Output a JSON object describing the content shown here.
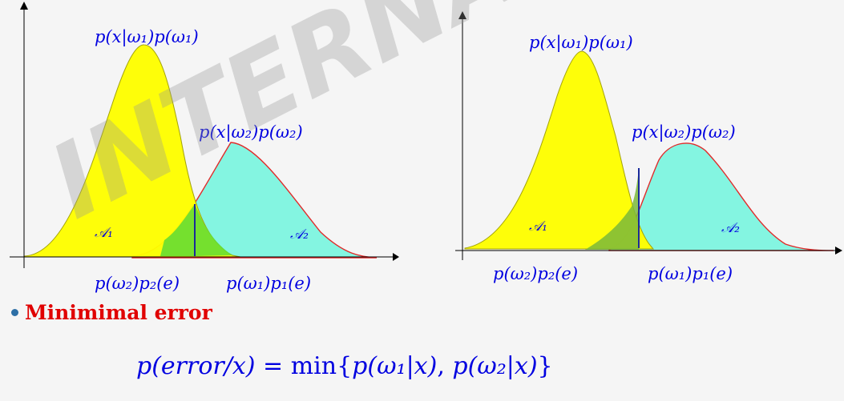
{
  "left_plot": {
    "label_class1": "p(x|ω₁)p(ω₁)",
    "label_class2": "p(x|ω₂)p(ω₂)",
    "region1": "𝒜₁",
    "region2": "𝒜₂",
    "error_label_left": "p(ω₂)p₂(e)",
    "error_label_right": "p(ω₁)p₁(e)"
  },
  "right_plot": {
    "label_class1": "p(x|ω₁)p(ω₁)",
    "label_class2": "p(x|ω₂)p(ω₂)",
    "region1": "𝒜₁",
    "region2": "𝒜₂",
    "error_label_left": "p(ω₂)p₂(e)",
    "error_label_right": "p(ω₁)p₁(e)"
  },
  "bullet_text": "Minimimal error",
  "formula": {
    "lhs": "p(error/x)",
    "eq": " = ",
    "min": "min",
    "open": "{",
    "term1": "p(ω₁|x)",
    "sep": ", ",
    "term2": "p(ω₂|x)",
    "close": "}"
  },
  "watermark": "INTERNAL USE",
  "colors": {
    "class1_fill": "#ffff00",
    "class2_fill": "#7ff5e0",
    "overlap_fill": "#66dd33",
    "class2_stroke": "#e02020",
    "threshold_line": "#1a2a9a",
    "label_text": "#0000e0",
    "bullet_text": "#e00000"
  }
}
